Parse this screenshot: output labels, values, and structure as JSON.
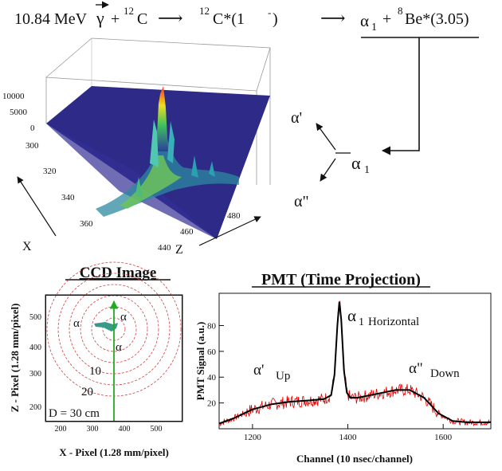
{
  "reaction": {
    "energy": "10.84 MeV",
    "gamma": "γ",
    "plus1": "+",
    "c12_mass": "12",
    "c12_symbol": "C",
    "arrow1": "⟶",
    "c12star_mass": "12",
    "c12star_symbol": "C*(1",
    "c12star_sup": "-",
    "c12star_close": ")",
    "arrow2": "⟶",
    "alpha1": "α",
    "alpha1_sub": "1",
    "plus2": "+",
    "be8_mass": "8",
    "be8_symbol": "Be*(3.05)"
  },
  "decay": {
    "alpha_prime": "α'",
    "alpha_double": "α\"",
    "alpha1": "α",
    "alpha1_sub": "1"
  },
  "surface": {
    "z_ticks": [
      "10000",
      "5000",
      "0"
    ],
    "x_ticks": [
      "300",
      "320",
      "340",
      "360"
    ],
    "zaxis_ticks": [
      "440",
      "460",
      "480"
    ],
    "x_label": "X",
    "z_label": "Z"
  },
  "ccd": {
    "title": "CCD Image",
    "ylabel": "Z - Pixel (1.28 mm/pixel)",
    "xlabel": "X - Pixel (1.28 mm/pixel)",
    "y_ticks": [
      "200",
      "300",
      "400",
      "500"
    ],
    "x_ticks": [
      "200",
      "300",
      "400",
      "500"
    ],
    "ring_labels": [
      "10",
      "20",
      "D = 30 cm"
    ],
    "alpha_labels": [
      "α",
      "α",
      "α"
    ]
  },
  "chart_data": {
    "type": "line",
    "title": "PMT (Time Projection)",
    "xlabel": "Channel (10 nsec/channel)",
    "ylabel": "PMT Signal (a.u.)",
    "xlim": [
      1130,
      1700
    ],
    "ylim": [
      0,
      105
    ],
    "x_ticks": [
      1200,
      1400,
      1600
    ],
    "y_ticks": [
      20,
      40,
      60,
      80
    ],
    "series": [
      {
        "name": "fit",
        "color": "#000000",
        "x": [
          1130,
          1160,
          1200,
          1240,
          1280,
          1320,
          1350,
          1365,
          1372,
          1378,
          1382,
          1386,
          1392,
          1398,
          1405,
          1420,
          1460,
          1500,
          1530,
          1560,
          1590,
          1620,
          1650,
          1700
        ],
        "y": [
          4,
          8,
          15,
          19,
          21,
          22,
          23,
          26,
          42,
          80,
          98,
          85,
          45,
          28,
          24,
          24,
          27,
          30,
          30,
          24,
          12,
          6,
          5,
          5
        ]
      },
      {
        "name": "data",
        "color": "#e00000",
        "x": [
          1130,
          1160,
          1200,
          1240,
          1280,
          1320,
          1350,
          1365,
          1372,
          1378,
          1382,
          1386,
          1392,
          1398,
          1405,
          1420,
          1460,
          1500,
          1530,
          1560,
          1590,
          1620,
          1650,
          1700
        ],
        "y": [
          4,
          8,
          15,
          19,
          21,
          22,
          23,
          26,
          42,
          80,
          98,
          85,
          45,
          28,
          24,
          24,
          27,
          30,
          30,
          24,
          12,
          6,
          5,
          5
        ]
      }
    ],
    "annotations": [
      {
        "label": "α",
        "sub": "1",
        "text": "Horizontal"
      },
      {
        "label": "α'",
        "text": "Up"
      },
      {
        "label": "α\"",
        "text": "Down"
      }
    ]
  }
}
